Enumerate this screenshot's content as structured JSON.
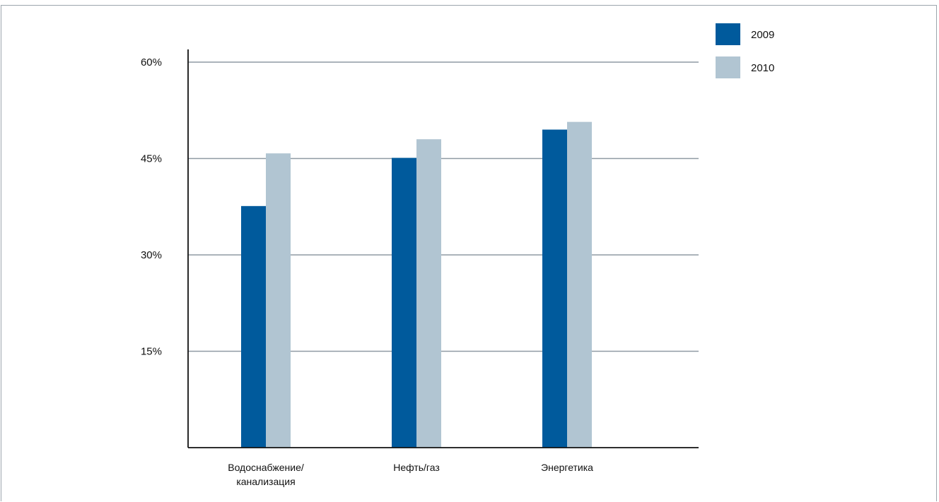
{
  "chart_data": {
    "type": "bar",
    "categories": [
      [
        "Водоснабжение/",
        "канализация"
      ],
      [
        "Нефть/газ"
      ],
      [
        "Энергетика"
      ]
    ],
    "series": [
      {
        "name": "2009",
        "values": [
          37.6,
          45.1,
          49.5
        ],
        "color": "#005a9c"
      },
      {
        "name": "2010",
        "values": [
          45.8,
          48.0,
          50.7
        ],
        "color": "#b1c5d2"
      }
    ],
    "yticks": [
      15,
      30,
      45,
      60
    ],
    "ytick_labels": [
      "15%",
      "30%",
      "45%",
      "60%"
    ],
    "ylim": [
      0,
      60
    ],
    "grid": true,
    "legend_position": "top-right",
    "title": "",
    "xlabel": "",
    "ylabel": ""
  }
}
